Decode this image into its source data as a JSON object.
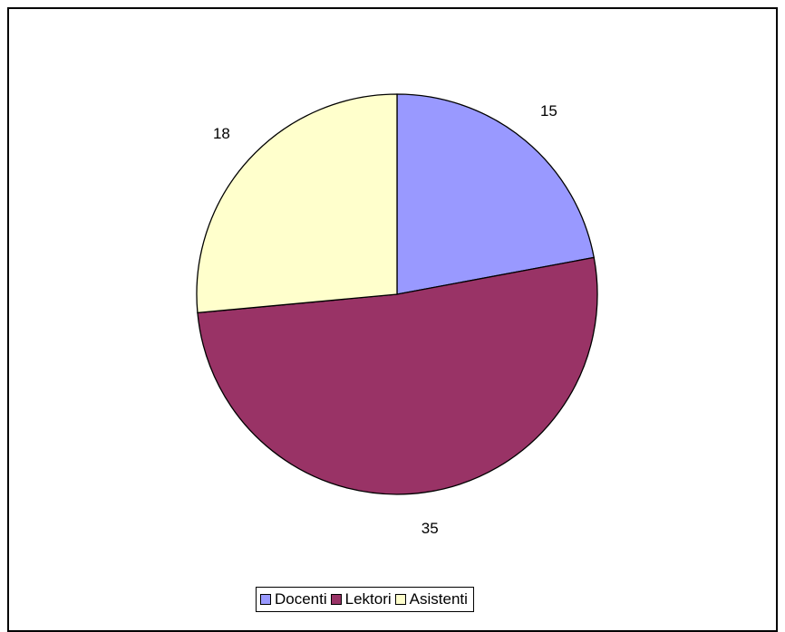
{
  "chart_data": {
    "type": "pie",
    "categories": [
      "Docenti",
      "Lektori",
      "Asistenti"
    ],
    "values": [
      15,
      35,
      18
    ],
    "data_labels": [
      "15",
      "35",
      "18"
    ],
    "colors": [
      "#9999ff",
      "#993366",
      "#ffffcc"
    ],
    "start_angle_deg": 0,
    "direction": "clockwise",
    "legend_position": "bottom",
    "title": "",
    "border_color": "#000000"
  }
}
